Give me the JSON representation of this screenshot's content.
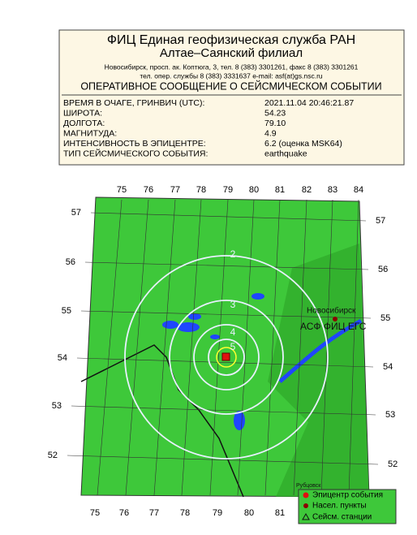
{
  "header": {
    "org": "ФИЦ Единая геофизическая служба РАН",
    "branch": "Алтае–Саянский филиал",
    "address": "Новосибирск, просп. ак. Коптюга, 3, тел. 8 (383) 3301261, факс 8 (383) 3301261",
    "phone": "тел. опер. службы 8 (383) 3331637  e-mail: asf(at)gs.nsc.ru",
    "report_title": "ОПЕРАТИВНОЕ СООБЩЕНИЕ О СЕЙСМИЧЕСКОМ СОБЫТИИ"
  },
  "event": [
    {
      "label": "ВРЕМЯ В ОЧАГЕ, ГРИНВИЧ (UTC):",
      "value": "2021.11.04 20:46:21.87"
    },
    {
      "label": "ШИРОТА:",
      "value": "54.23"
    },
    {
      "label": "ДОЛГОТА:",
      "value": "79.10"
    },
    {
      "label": "МАГНИТУДА:",
      "value": "4.9"
    },
    {
      "label": "ИНТЕНСИВНОСТЬ В ЭПИЦЕНТРЕ:",
      "value": "6.2 (оценка MSK64)"
    },
    {
      "label": "ТИП СЕЙСМИЧЕСКОГО СОБЫТИЯ:",
      "value": "earthquake"
    }
  ],
  "map": {
    "lon_top": [
      75,
      76,
      77,
      78,
      79,
      80,
      81,
      82,
      83,
      84
    ],
    "lon_bottom": [
      75,
      76,
      77,
      78,
      79,
      80,
      81
    ],
    "lat_left": [
      57,
      56,
      55,
      54,
      53,
      52
    ],
    "lat_right": [
      57,
      56,
      55,
      54,
      53,
      52
    ],
    "intensity_labels": [
      "5",
      "4",
      "3",
      "2"
    ],
    "cities": [
      "Новосибирск",
      "АСФ ФИЦ ЕГС",
      "Рубцовск"
    ],
    "legend": [
      "Эпицентр события",
      "Насел. пункты",
      "Сейсм. станции"
    ]
  }
}
